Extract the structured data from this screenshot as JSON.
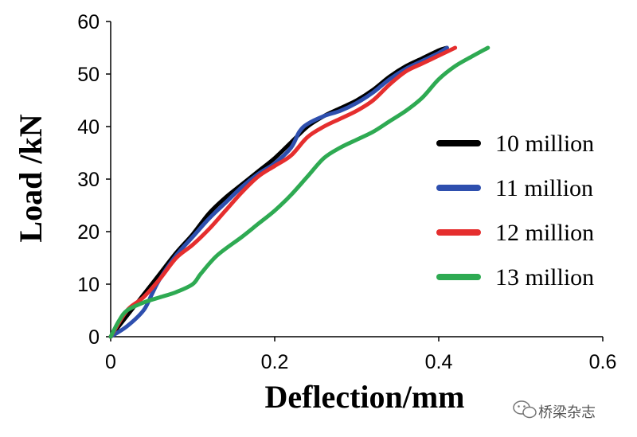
{
  "chart_data": {
    "type": "line",
    "title": "",
    "xlabel": "Deflection/mm",
    "ylabel": "Load /kN",
    "xlim": [
      0,
      0.6
    ],
    "ylim": [
      0,
      60
    ],
    "xticks": [
      "0",
      "0.2",
      "0.4",
      "0.6"
    ],
    "yticks": [
      "0",
      "10",
      "20",
      "30",
      "40",
      "50",
      "60"
    ],
    "grid": false,
    "legend_position": "right",
    "series": [
      {
        "name": "10 million",
        "color": "#000000",
        "points": [
          [
            0,
            0
          ],
          [
            0.02,
            4
          ],
          [
            0.04,
            8
          ],
          [
            0.06,
            12
          ],
          [
            0.08,
            16
          ],
          [
            0.1,
            19.5
          ],
          [
            0.12,
            23.5
          ],
          [
            0.14,
            26.5
          ],
          [
            0.16,
            29
          ],
          [
            0.18,
            31.5
          ],
          [
            0.2,
            34
          ],
          [
            0.22,
            37
          ],
          [
            0.24,
            40
          ],
          [
            0.26,
            42
          ],
          [
            0.28,
            43.5
          ],
          [
            0.3,
            45
          ],
          [
            0.32,
            47
          ],
          [
            0.34,
            49.5
          ],
          [
            0.36,
            51.5
          ],
          [
            0.38,
            53
          ],
          [
            0.4,
            54.5
          ],
          [
            0.41,
            55
          ]
        ]
      },
      {
        "name": "11 million",
        "color": "#2e4fae",
        "points": [
          [
            0,
            0
          ],
          [
            0.02,
            2
          ],
          [
            0.04,
            5
          ],
          [
            0.05,
            8
          ],
          [
            0.06,
            11
          ],
          [
            0.08,
            15.5
          ],
          [
            0.1,
            19
          ],
          [
            0.12,
            22.5
          ],
          [
            0.14,
            25.5
          ],
          [
            0.16,
            28.5
          ],
          [
            0.18,
            31
          ],
          [
            0.2,
            33
          ],
          [
            0.22,
            36
          ],
          [
            0.23,
            39
          ],
          [
            0.24,
            40.5
          ],
          [
            0.26,
            42
          ],
          [
            0.28,
            43
          ],
          [
            0.3,
            44.5
          ],
          [
            0.32,
            46.5
          ],
          [
            0.34,
            49
          ],
          [
            0.36,
            51
          ],
          [
            0.38,
            52.5
          ],
          [
            0.4,
            54
          ],
          [
            0.41,
            55
          ]
        ]
      },
      {
        "name": "12 million",
        "color": "#e52e2e",
        "points": [
          [
            0,
            0
          ],
          [
            0.02,
            5
          ],
          [
            0.04,
            7.5
          ],
          [
            0.06,
            11
          ],
          [
            0.08,
            15
          ],
          [
            0.1,
            17.5
          ],
          [
            0.12,
            20.5
          ],
          [
            0.14,
            24
          ],
          [
            0.16,
            27.5
          ],
          [
            0.18,
            30.5
          ],
          [
            0.2,
            32.5
          ],
          [
            0.22,
            34.5
          ],
          [
            0.24,
            38
          ],
          [
            0.26,
            40
          ],
          [
            0.28,
            41.5
          ],
          [
            0.3,
            43
          ],
          [
            0.32,
            45
          ],
          [
            0.34,
            48
          ],
          [
            0.36,
            50.5
          ],
          [
            0.38,
            52
          ],
          [
            0.4,
            53.5
          ],
          [
            0.42,
            55
          ]
        ]
      },
      {
        "name": "13 million",
        "color": "#2eaa52",
        "points": [
          [
            0,
            0
          ],
          [
            0.01,
            3
          ],
          [
            0.02,
            5
          ],
          [
            0.04,
            6.5
          ],
          [
            0.06,
            7.5
          ],
          [
            0.08,
            8.5
          ],
          [
            0.1,
            10
          ],
          [
            0.11,
            12
          ],
          [
            0.13,
            15.5
          ],
          [
            0.16,
            19
          ],
          [
            0.18,
            21.5
          ],
          [
            0.2,
            24
          ],
          [
            0.22,
            27
          ],
          [
            0.24,
            30.5
          ],
          [
            0.26,
            34
          ],
          [
            0.28,
            36
          ],
          [
            0.3,
            37.5
          ],
          [
            0.32,
            39
          ],
          [
            0.34,
            41
          ],
          [
            0.36,
            43
          ],
          [
            0.38,
            45.5
          ],
          [
            0.4,
            49
          ],
          [
            0.42,
            51.5
          ],
          [
            0.44,
            53.3
          ],
          [
            0.46,
            55
          ]
        ]
      }
    ]
  },
  "watermark": {
    "text": "桥梁杂志",
    "icon": "wechat-icon"
  }
}
